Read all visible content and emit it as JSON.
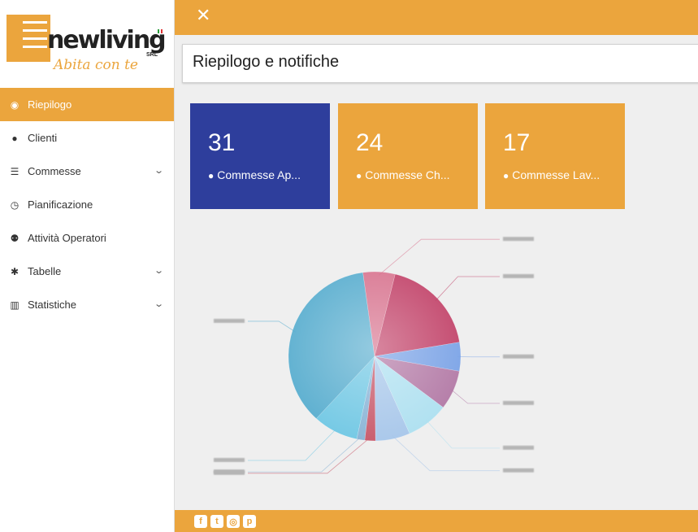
{
  "brand": {
    "name": "newliving",
    "suffix": "SRL",
    "slogan": "Abita con te"
  },
  "nav": [
    {
      "label": "Riepilogo",
      "icon": "dashboard-icon",
      "glyph": "◉",
      "active": true,
      "has_children": false
    },
    {
      "label": "Clienti",
      "icon": "user-icon",
      "glyph": "●",
      "active": false,
      "has_children": false
    },
    {
      "label": "Commesse",
      "icon": "list-icon",
      "glyph": "☰",
      "active": false,
      "has_children": true
    },
    {
      "label": "Pianificazione",
      "icon": "clock-icon",
      "glyph": "◷",
      "active": false,
      "has_children": false
    },
    {
      "label": "Attività Operatori",
      "icon": "users-icon",
      "glyph": "⚉",
      "active": false,
      "has_children": false
    },
    {
      "label": "Tabelle",
      "icon": "gear-icon",
      "glyph": "✱",
      "active": false,
      "has_children": true
    },
    {
      "label": "Statistiche",
      "icon": "bar-chart-icon",
      "glyph": "▥",
      "active": false,
      "has_children": true
    }
  ],
  "header": {
    "title": "Riepilogo e notifiche",
    "close_glyph": "✕"
  },
  "cards": [
    {
      "count": "31",
      "label": "Commesse Ap...",
      "color": "#2e3e9c"
    },
    {
      "count": "24",
      "label": "Commesse Ch...",
      "color": "#eba53d"
    },
    {
      "count": "17",
      "label": "Commesse Lav...",
      "color": "#eba53d"
    }
  ],
  "chart_data": {
    "type": "pie",
    "title": "",
    "legend": "none",
    "labels_legible": false,
    "slices": [
      {
        "value": 18.5,
        "color": "#c2446a"
      },
      {
        "value": 5.5,
        "color": "#7ba3e6"
      },
      {
        "value": 7.5,
        "color": "#b37aa6"
      },
      {
        "value": 8.0,
        "color": "#aee0f0"
      },
      {
        "value": 6.5,
        "color": "#a8c7ea"
      },
      {
        "value": 2.0,
        "color": "#c85a6b"
      },
      {
        "value": 1.5,
        "color": "#8ab4d6"
      },
      {
        "value": 8.5,
        "color": "#72c8e4"
      },
      {
        "value": 36.0,
        "color": "#5aaecf"
      },
      {
        "value": 6.0,
        "color": "#d87590"
      }
    ]
  },
  "footer": {
    "social": [
      {
        "icon": "facebook-icon",
        "glyph": "f"
      },
      {
        "icon": "twitter-icon",
        "glyph": "t"
      },
      {
        "icon": "instagram-icon",
        "glyph": "◎"
      },
      {
        "icon": "pinterest-icon",
        "glyph": "p"
      }
    ]
  },
  "colors": {
    "accent": "#eba53d",
    "primary": "#2e3e9c"
  }
}
